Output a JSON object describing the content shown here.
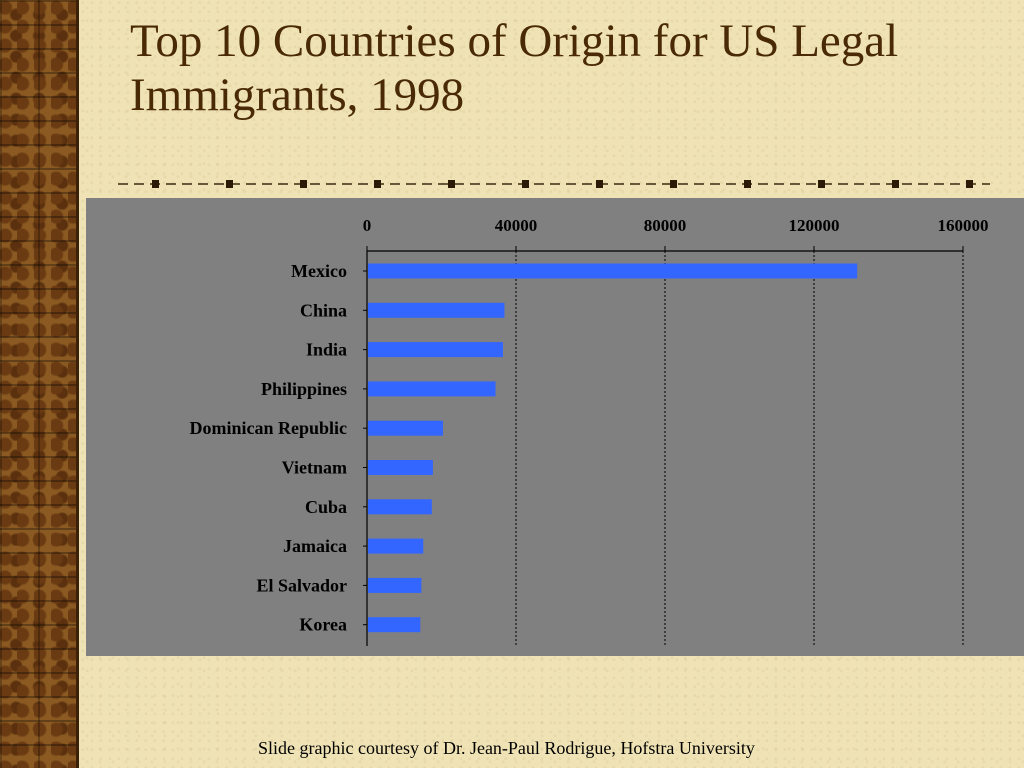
{
  "slide": {
    "title": "Top 10 Countries of Origin for US Legal Immigrants, 1998",
    "credit": "Slide graphic courtesy of Dr. Jean-Paul Rodrigue, Hofstra University"
  },
  "colors": {
    "background": "#efe3b6",
    "title_text": "#4a2a06",
    "chart_panel": "#808080",
    "bar": "#3366ff",
    "gridline": "#000000"
  },
  "chart_data": {
    "type": "bar",
    "orientation": "horizontal",
    "title": "",
    "xlabel": "",
    "ylabel": "",
    "categories": [
      "Mexico",
      "China",
      "India",
      "Philippines",
      "Dominican Republic",
      "Vietnam",
      "Cuba",
      "Jamaica",
      "El Salvador",
      "Korea"
    ],
    "values": [
      131600,
      36900,
      36500,
      34500,
      20400,
      17700,
      17400,
      15100,
      14600,
      14300
    ],
    "xlim": [
      0,
      160000
    ],
    "xticks": [
      "0",
      "40000",
      "80000",
      "120000",
      "160000"
    ],
    "tick_values": [
      0,
      40000,
      80000,
      120000,
      160000
    ],
    "x_axis_position": "top",
    "gridlines": "dotted vertical",
    "legend": "none"
  }
}
